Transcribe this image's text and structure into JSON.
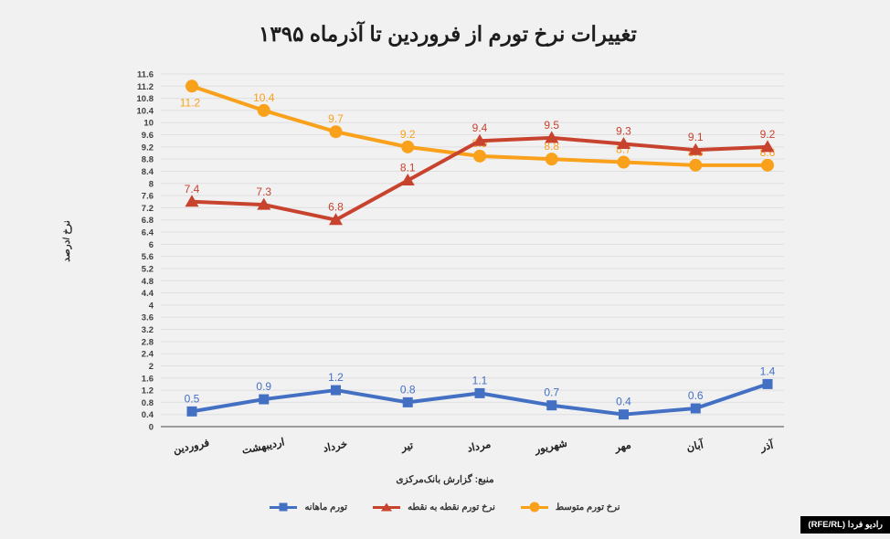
{
  "title": "تغییرات نرخ تورم از فروردین تا آذرماه ۱۳۹۵",
  "y_axis_title": "نرخ /درصد",
  "source": "منبع: گزارش بانک‌مرکزی",
  "branding": "رادیو فردا (RFE/RL)",
  "colors": {
    "average": "#F9A11B",
    "point_to_point": "#C8432E",
    "monthly": "#4470C4",
    "grid": "#dfdfe0",
    "axis": "#7f7f7f"
  },
  "legend": [
    {
      "label": "تورم ماهانه",
      "marker": "square",
      "color": "#4470C4"
    },
    {
      "label": "نرخ تورم نقطه به نقطه",
      "marker": "triangle",
      "color": "#C8432E"
    },
    {
      "label": "نرخ تورم متوسط",
      "marker": "circle",
      "color": "#F9A11B"
    }
  ],
  "chart_data": {
    "type": "line",
    "title": "تغییرات نرخ تورم از فروردین تا آذرماه ۱۳۹۵",
    "ylabel": "نرخ /درصد",
    "categories": [
      "فروردین",
      "اردیبهشت",
      "خرداد",
      "تیر",
      "مرداد",
      "شهریور",
      "مهر",
      "آبان",
      "آذر"
    ],
    "series": [
      {
        "name": "نرخ تورم متوسط",
        "marker": "circle",
        "color": "#F9A11B",
        "values": [
          11.2,
          10.4,
          9.7,
          9.2,
          8.9,
          8.8,
          8.7,
          8.6,
          8.6
        ]
      },
      {
        "name": "نرخ تورم نقطه به نقطه",
        "marker": "triangle",
        "color": "#C8432E",
        "values": [
          7.4,
          7.3,
          6.8,
          8.1,
          9.4,
          9.5,
          9.3,
          9.1,
          9.2
        ]
      },
      {
        "name": "تورم ماهانه",
        "marker": "square",
        "color": "#4470C4",
        "values": [
          0.5,
          0.9,
          1.2,
          0.8,
          1.1,
          0.7,
          0.4,
          0.6,
          1.4
        ]
      }
    ],
    "ylim": [
      0,
      11.6
    ],
    "ytick_step": 0.4,
    "grid": true,
    "legend_position": "bottom",
    "data_labels": true
  }
}
